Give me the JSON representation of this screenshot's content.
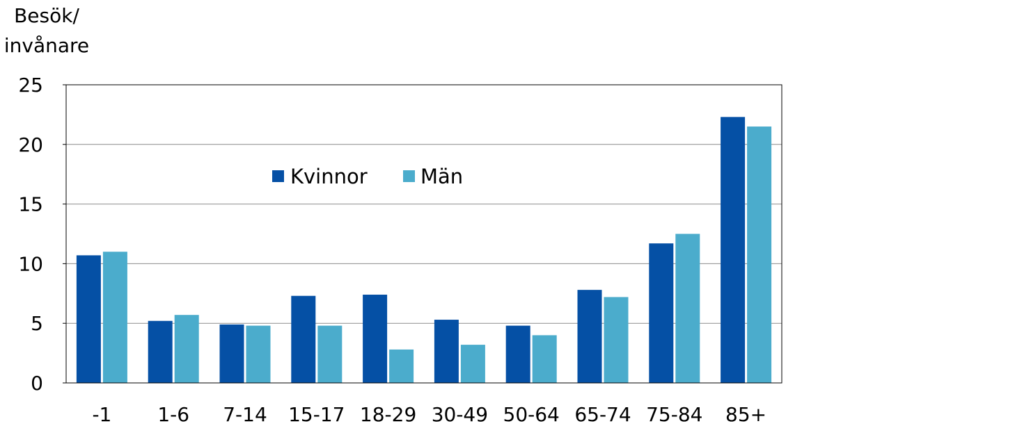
{
  "chart_data": {
    "type": "bar",
    "ylabel": [
      "Besök/",
      "invånare"
    ],
    "ylim": [
      0,
      25
    ],
    "yticks": [
      0,
      5,
      10,
      15,
      20,
      25
    ],
    "grid": true,
    "legend_position": "top-center",
    "categories": [
      "-1",
      "1-6",
      "7-14",
      "15-17",
      "18-29",
      "30-49",
      "50-64",
      "65-74",
      "75-84",
      "85+"
    ],
    "series": [
      {
        "name": "Kvinnor",
        "color": "#0550A5",
        "values": [
          10.7,
          5.2,
          4.9,
          7.3,
          7.4,
          5.3,
          4.8,
          7.8,
          11.7,
          22.3
        ]
      },
      {
        "name": "Män",
        "color": "#4BACCC",
        "values": [
          11.0,
          5.7,
          4.8,
          4.8,
          2.8,
          3.2,
          4.0,
          7.2,
          12.5,
          21.5
        ]
      }
    ]
  }
}
